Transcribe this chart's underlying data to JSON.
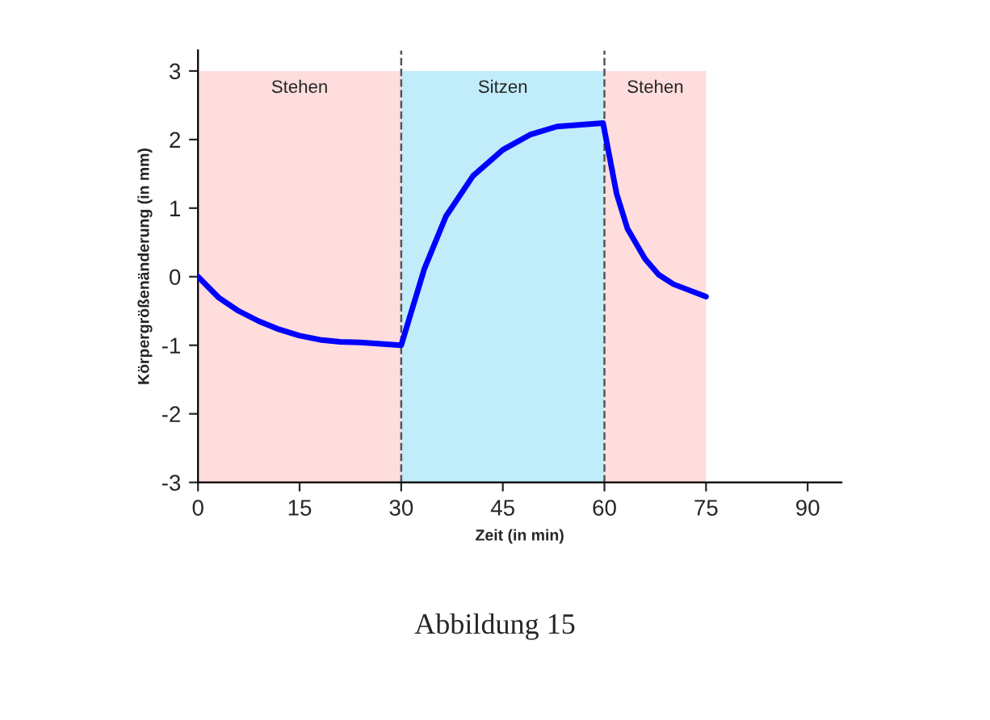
{
  "chart_data": {
    "type": "line",
    "xlabel": "Zeit (in min)",
    "ylabel": "Körpergrößenänderung (in mm)",
    "annotations": [
      "Abbildung 15"
    ],
    "series": [
      {
        "color": "#0000ff",
        "x": [
          0,
          3,
          6,
          9,
          12,
          15,
          18,
          21,
          24,
          27,
          30,
          33.4,
          36.6,
          40.6,
          45,
          49,
          53,
          59.8,
          61.8,
          63.4,
          66,
          68,
          70.2,
          75
        ],
        "values": [
          0,
          -0.3,
          -0.5,
          -0.65,
          -0.77,
          -0.86,
          -0.92,
          -0.95,
          -0.96,
          -0.98,
          -1.0,
          0.11,
          0.88,
          1.47,
          1.85,
          2.07,
          2.19,
          2.24,
          1.21,
          0.7,
          0.26,
          0.03,
          -0.11,
          -0.29
        ]
      }
    ],
    "xlim": [
      0,
      95
    ],
    "xticks": [
      0,
      15,
      30,
      45,
      60,
      75,
      90
    ],
    "ylim": [
      -3,
      3.3
    ],
    "yticks": [
      -3,
      -2,
      -1,
      0,
      1,
      2,
      3
    ],
    "bands": [
      {
        "axis": "x",
        "from": 0,
        "to": 30,
        "label": "Stehen",
        "color": "#ffdddd"
      },
      {
        "axis": "x",
        "from": 30,
        "to": 60,
        "label": "Sitzen",
        "color": "#c1ecfa"
      },
      {
        "axis": "x",
        "from": 60,
        "to": 75,
        "label": "Stehen",
        "color": "#ffdddd"
      }
    ],
    "ref_lines": [
      {
        "axis": "x",
        "value": 30,
        "color": "#555555",
        "line_style": "dashed"
      },
      {
        "axis": "x",
        "value": 60,
        "color": "#555555",
        "line_style": "dashed"
      }
    ],
    "grid": false,
    "legend": false,
    "marker": "none",
    "line_style": "solid"
  }
}
